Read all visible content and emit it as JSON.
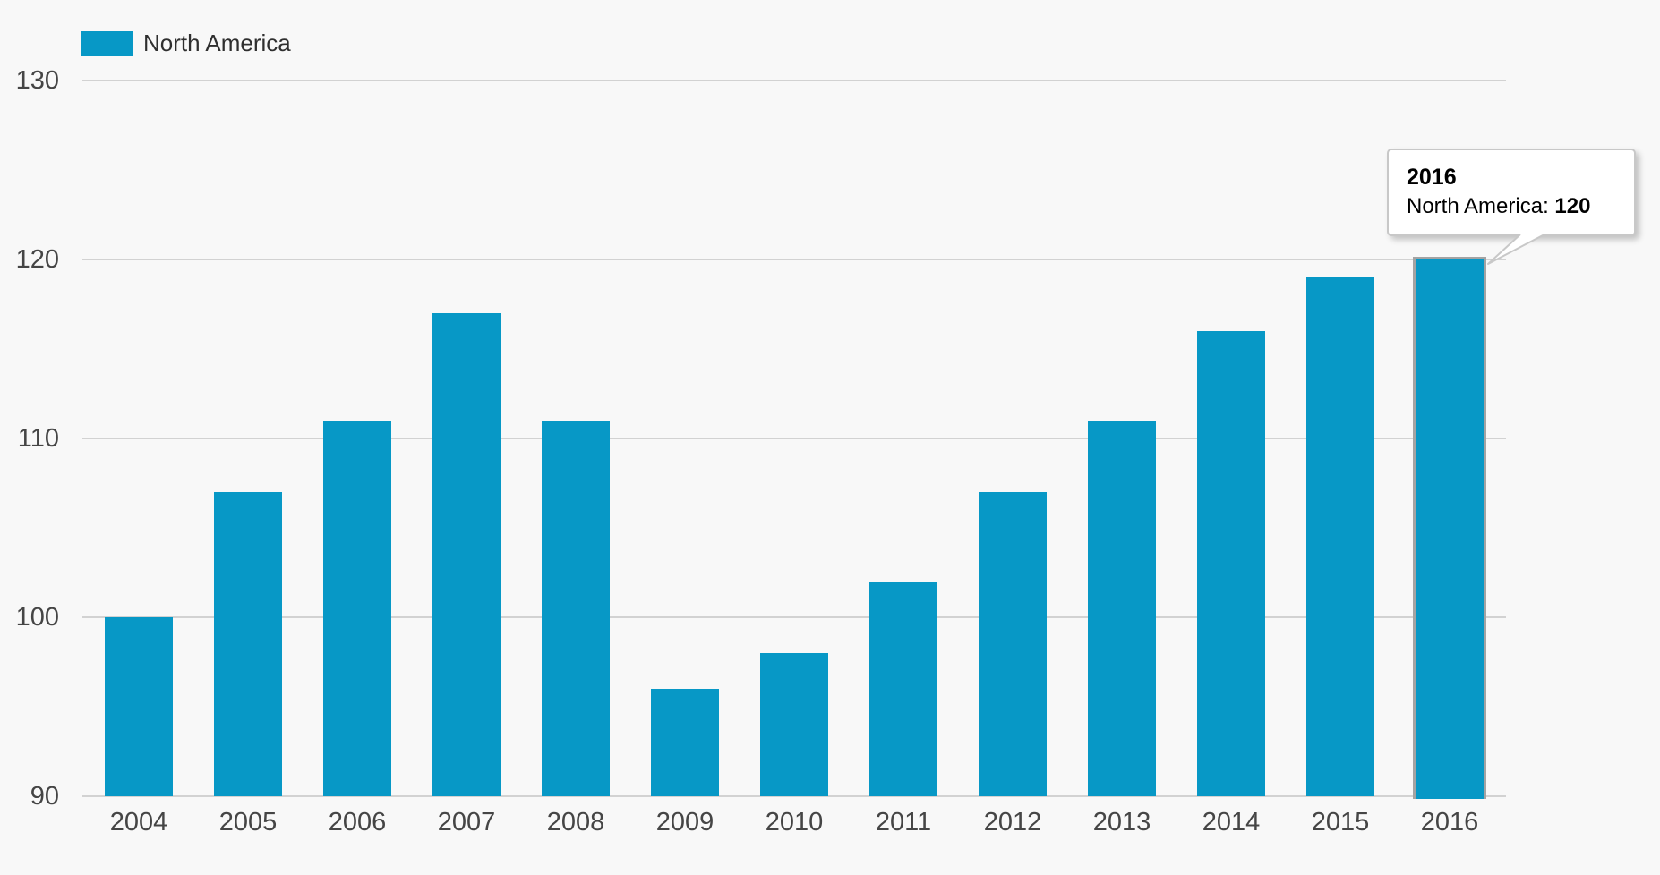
{
  "chart_data": {
    "type": "bar",
    "title": "",
    "xlabel": "",
    "ylabel": "",
    "categories": [
      "2004",
      "2005",
      "2006",
      "2007",
      "2008",
      "2009",
      "2010",
      "2011",
      "2012",
      "2013",
      "2014",
      "2015",
      "2016"
    ],
    "series": [
      {
        "name": "North America",
        "values": [
          100,
          107,
          111,
          117,
          111,
          96,
          98,
          102,
          107,
          111,
          116,
          119,
          120
        ]
      }
    ],
    "ylim": [
      90,
      130
    ],
    "yticks": [
      90,
      100,
      110,
      120,
      130
    ],
    "grid": true,
    "legend_position": "top-left",
    "highlighted_category": "2016"
  },
  "legend": {
    "label": "North America"
  },
  "tooltip": {
    "header": "2016",
    "series_label": "North America",
    "separator": ": ",
    "value": "120"
  },
  "colors": {
    "background": "#f8f8f8",
    "bar": "#0798c6",
    "gridline": "#d2d2d2",
    "axis_label": "#454545",
    "legend_text": "#2f2f2f",
    "tooltip_background": "#ffffff",
    "tooltip_border": "#c8c8c8",
    "highlight_border": "#a3a3a3"
  }
}
